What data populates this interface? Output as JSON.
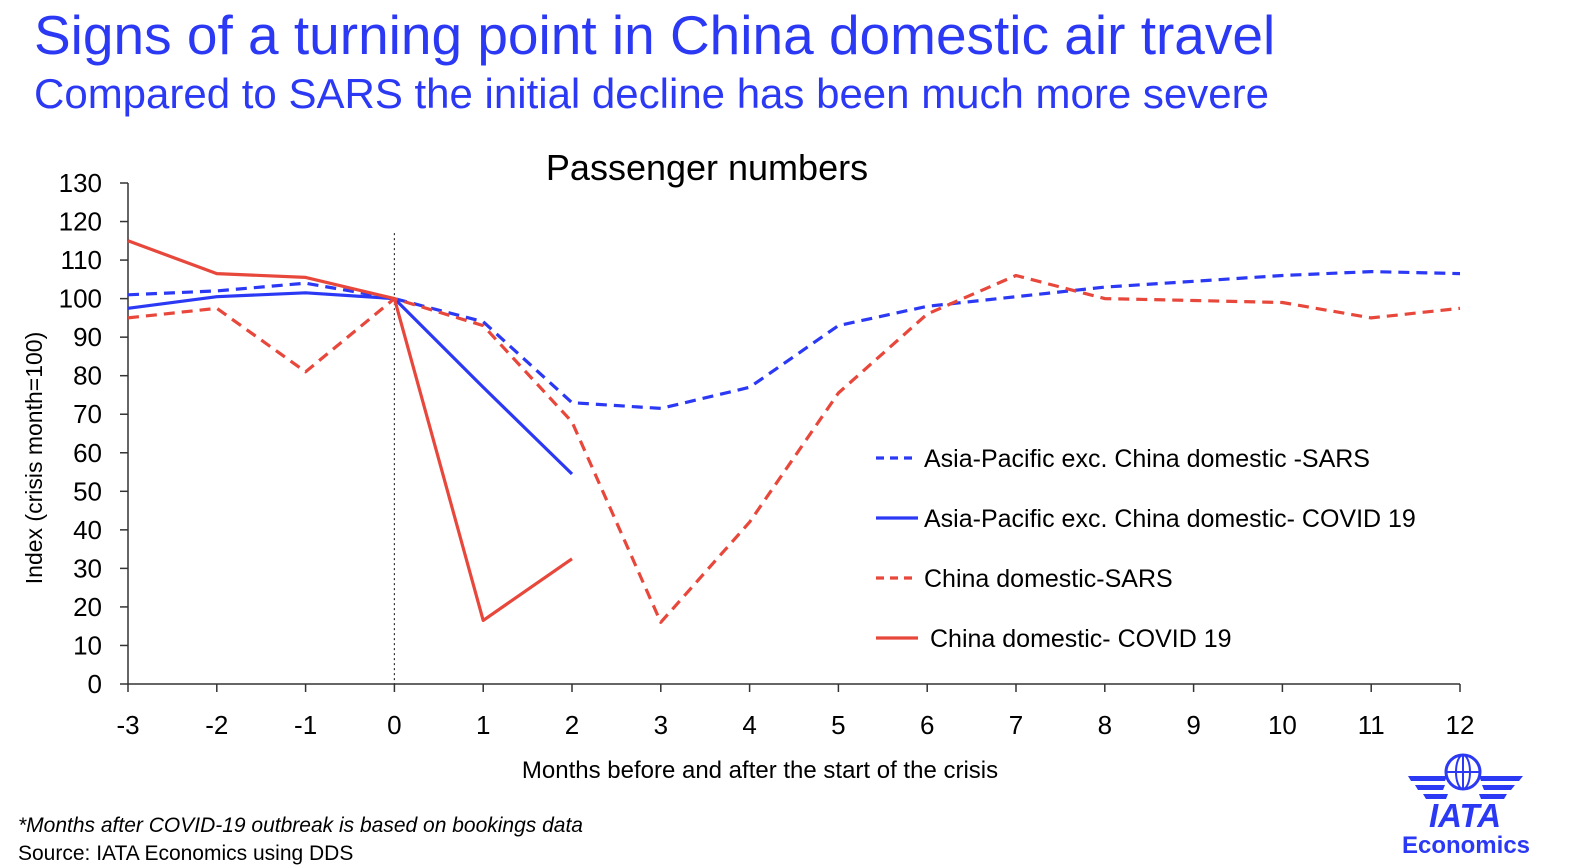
{
  "header": {
    "title": "Signs of a turning point in China domestic air travel",
    "subtitle": "Compared to SARS the initial decline has been much more severe"
  },
  "chart_data": {
    "type": "line",
    "title": "Passenger numbers",
    "xlabel": "Months before and after the start of the crisis",
    "ylabel": "Index (crisis month=100)",
    "x": [
      -3,
      -2,
      -1,
      0,
      1,
      2,
      3,
      4,
      5,
      6,
      7,
      8,
      9,
      10,
      11,
      12
    ],
    "xlim": [
      -3,
      12
    ],
    "ylim": [
      0,
      130
    ],
    "yticks": [
      0,
      10,
      20,
      30,
      40,
      50,
      60,
      70,
      80,
      90,
      100,
      110,
      120,
      130
    ],
    "grid": false,
    "legend_position": "right",
    "reference_line": {
      "x": 0,
      "style": "dotted"
    },
    "series": [
      {
        "name": "Asia-Pacific exc. China domestic -SARS",
        "color": "#2b39f5",
        "dash": "dashed",
        "values": [
          101,
          102,
          104,
          100,
          94,
          73,
          71.5,
          77,
          93,
          98,
          100.5,
          103,
          104.5,
          106,
          107,
          106.5
        ]
      },
      {
        "name": "Asia-Pacific exc. China domestic- COVID 19",
        "color": "#2b39f5",
        "dash": "solid",
        "values": [
          97.5,
          100.5,
          101.5,
          100,
          77,
          54.5,
          null,
          null,
          null,
          null,
          null,
          null,
          null,
          null,
          null,
          null
        ]
      },
      {
        "name": "China domestic-SARS",
        "color": "#e8473b",
        "dash": "dashed",
        "values": [
          95,
          97.5,
          81,
          100,
          93,
          68,
          16,
          42,
          75.5,
          96,
          106,
          100,
          99.5,
          99,
          95,
          97.5
        ]
      },
      {
        "name": "China domestic- COVID 19",
        "color": "#e8473b",
        "dash": "solid",
        "values": [
          115,
          106.5,
          105.5,
          100,
          16.5,
          32.5,
          null,
          null,
          null,
          null,
          null,
          null,
          null,
          null,
          null,
          null
        ]
      }
    ]
  },
  "footer": {
    "footnote": "*Months after COVID-19 outbreak is based on bookings data",
    "source": "Source: IATA Economics using DDS",
    "logo_text": "IATA",
    "logo_caption": "Economics"
  },
  "colors": {
    "accent": "#2b39f5",
    "red": "#e8473b"
  }
}
